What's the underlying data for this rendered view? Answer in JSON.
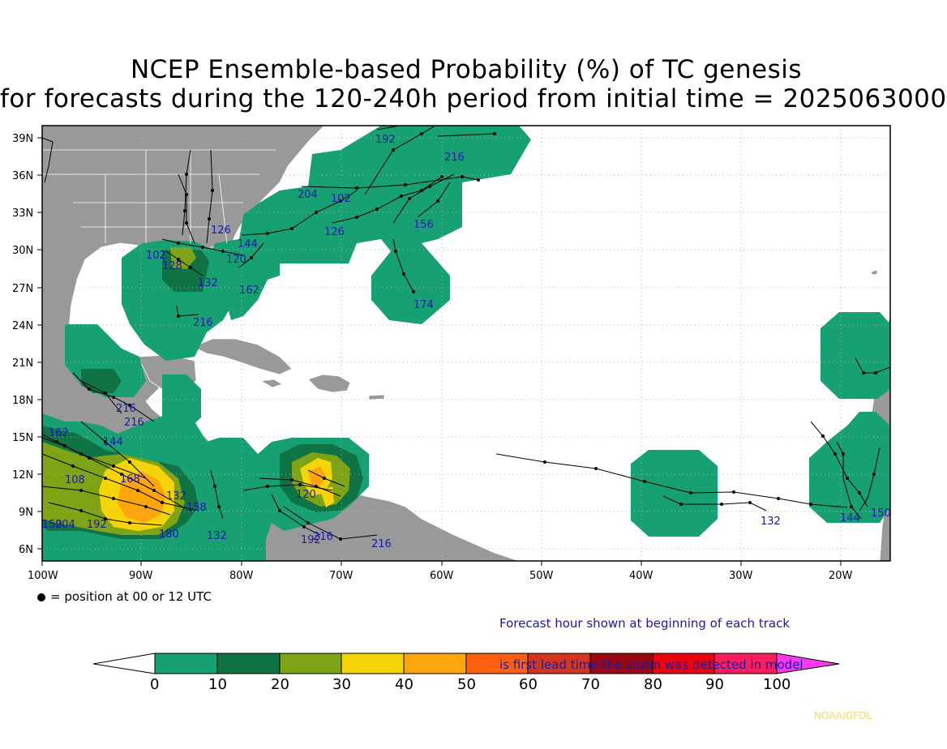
{
  "title": {
    "line1": "NCEP Ensemble-based Probability (%) of TC genesis",
    "line2": "for forecasts during the 120-240h period from initial time = 2025063000"
  },
  "map": {
    "lat_labels": [
      "39N",
      "36N",
      "33N",
      "30N",
      "27N",
      "24N",
      "21N",
      "18N",
      "15N",
      "12N",
      "9N",
      "6N"
    ],
    "lon_labels": [
      "100W",
      "90W",
      "80W",
      "70W",
      "60W",
      "50W",
      "40W",
      "30W",
      "20W"
    ],
    "land_color": "#999999",
    "ocean_color": "#ffffff",
    "track_color": "#000000",
    "hour_label_color": "#1a1aa8",
    "hour_labels": [
      "192",
      "216",
      "204",
      "102",
      "156",
      "126",
      "126",
      "144",
      "102",
      "120",
      "128",
      "132",
      "162",
      "174",
      "216",
      "162",
      "144",
      "216",
      "216",
      "150",
      "204",
      "192",
      "180",
      "168",
      "108",
      "132",
      "158",
      "120",
      "216",
      "192",
      "216",
      "132",
      "132",
      "150",
      "144"
    ]
  },
  "legend": {
    "dot_text": "= position at 00 or 12 UTC",
    "note_line1": "Forecast hour shown at beginning of each track",
    "note_line2": "is first lead time the storm was detected in model"
  },
  "colorbar": {
    "labels": [
      "0",
      "10",
      "20",
      "30",
      "40",
      "50",
      "60",
      "70",
      "80",
      "90",
      "100"
    ],
    "colors": [
      "#ffffff",
      "#17a071",
      "#107346",
      "#7ea314",
      "#f5d409",
      "#fea50c",
      "#fd6010",
      "#d2361d",
      "#9a0710",
      "#e8030f",
      "#fc1d5b",
      "#f839ee"
    ]
  },
  "credit": "NOAA/GFDL"
}
